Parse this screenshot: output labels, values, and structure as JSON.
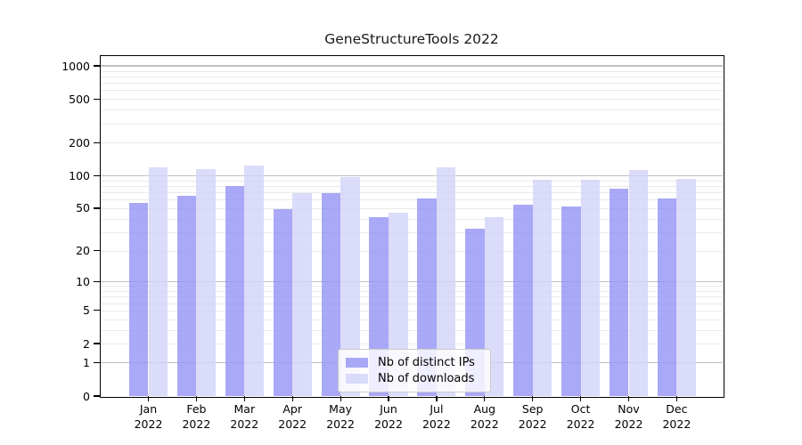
{
  "title": "GeneStructureTools 2022",
  "chart_data": {
    "type": "bar",
    "title": "GeneStructureTools 2022",
    "y_scale": "log1p (symlog-like: ticks 0,1,2,5,10,20,50,100,200,500,1000)",
    "ylim": [
      0,
      1230
    ],
    "grid": "on",
    "legend_position": "lower center",
    "categories": [
      "Jan 2022",
      "Feb 2022",
      "Mar 2022",
      "Apr 2022",
      "May 2022",
      "Jun 2022",
      "Jul 2022",
      "Aug 2022",
      "Sep 2022",
      "Oct 2022",
      "Nov 2022",
      "Dec 2022"
    ],
    "x_tick_months": [
      "Jan",
      "Feb",
      "Mar",
      "Apr",
      "May",
      "Jun",
      "Jul",
      "Aug",
      "Sep",
      "Oct",
      "Nov",
      "Dec"
    ],
    "x_tick_year": "2022",
    "y_ticks": [
      0,
      1,
      2,
      5,
      10,
      20,
      50,
      100,
      200,
      500,
      1000
    ],
    "series": [
      {
        "name": "Nb of distinct IPs",
        "color": "#9494f5",
        "values": [
          56,
          65,
          80,
          49,
          69,
          41,
          62,
          32,
          54,
          52,
          75,
          61
        ]
      },
      {
        "name": "Nb of downloads",
        "color": "#d2d2f9",
        "values": [
          119,
          114,
          123,
          69,
          97,
          45,
          118,
          41,
          91,
          91,
          112,
          93
        ]
      }
    ]
  },
  "colors": {
    "bar_alpha": "0.8",
    "grid_major": "#c0c0c0",
    "grid_minor": "#eaeaea",
    "spine": "#000000",
    "background": "#ffffff"
  }
}
